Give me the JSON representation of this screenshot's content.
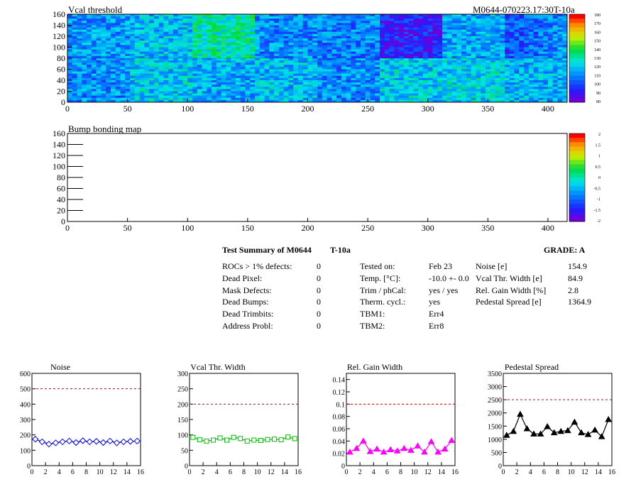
{
  "maps": [
    {
      "id": "vcal",
      "title": "Vcal threshold",
      "right_title": "M0644-070223.17:30T-10a",
      "x_ticks": [
        0,
        50,
        100,
        150,
        200,
        250,
        300,
        350,
        400
      ],
      "y_ticks": [
        0,
        20,
        40,
        60,
        80,
        100,
        120,
        140,
        160
      ],
      "xlim": [
        0,
        416
      ],
      "ylim": [
        0,
        160
      ],
      "colorbar_ticks": [
        "180",
        "170",
        "160",
        "150",
        "140",
        "130",
        "120",
        "110",
        "100",
        "90",
        "80"
      ]
    },
    {
      "id": "bump",
      "title": "Bump bonding map",
      "x_ticks": [
        0,
        50,
        100,
        150,
        200,
        250,
        300,
        350,
        400
      ],
      "y_ticks": [
        0,
        20,
        40,
        60,
        80,
        100,
        120,
        140,
        160
      ],
      "xlim": [
        0,
        416
      ],
      "ylim": [
        0,
        160
      ],
      "colorbar_ticks": [
        "2",
        "1.5",
        "1",
        "0.5",
        "0",
        "-0.5",
        "-1",
        "-1.5",
        "-2"
      ]
    }
  ],
  "summary": {
    "title": "Test Summary of M0644",
    "temp_tag": "T-10a",
    "grade": "GRADE:  A",
    "defects": [
      {
        "label": "ROCs > 1% defects:",
        "value": "0"
      },
      {
        "label": "Dead Pixel:",
        "value": "0"
      },
      {
        "label": "Mask Defects:",
        "value": "0"
      },
      {
        "label": "Dead Bumps:",
        "value": "0"
      },
      {
        "label": "Dead Trimbits:",
        "value": "0"
      },
      {
        "label": "Address Probl:",
        "value": "0"
      }
    ],
    "conditions": [
      {
        "label": "Tested on:",
        "value": "Feb 23"
      },
      {
        "label": "Temp. [°C]:",
        "value": "-10.0 +- 0.0"
      },
      {
        "label": "Trim / phCal:",
        "value": "yes / yes"
      },
      {
        "label": "Therm. cycl.:",
        "value": "yes"
      },
      {
        "label": "TBM1:",
        "value": "Err4"
      },
      {
        "label": "TBM2:",
        "value": "Err8"
      }
    ],
    "results": [
      {
        "label": "Noise [e]",
        "value": "154.9"
      },
      {
        "label": "Vcal Thr. Width [e]",
        "value": "84.9"
      },
      {
        "label": "Rel. Gain Width [%]",
        "value": "2.8"
      },
      {
        "label": "Pedestal Spread [e]",
        "value": "1364.9"
      }
    ]
  },
  "chart_data": [
    {
      "type": "line",
      "title": "Noise",
      "color": "#0000ff",
      "marker": "diamond",
      "x": [
        0,
        1,
        2,
        3,
        4,
        5,
        6,
        7,
        8,
        9,
        10,
        11,
        12,
        13,
        14,
        15
      ],
      "values": [
        172,
        155,
        140,
        148,
        155,
        160,
        150,
        162,
        155,
        158,
        150,
        160,
        148,
        155,
        158,
        160
      ],
      "ylim": [
        0,
        600
      ],
      "y_ticks": [
        0,
        100,
        200,
        300,
        400,
        500,
        600
      ],
      "x_ticks": [
        0,
        2,
        4,
        6,
        8,
        10,
        12,
        14,
        16
      ],
      "xlim": [
        0,
        16
      ],
      "limit": 500
    },
    {
      "type": "line",
      "title": "Vcal Thr. Width",
      "color": "#00bb00",
      "marker": "square",
      "x": [
        0,
        1,
        2,
        3,
        4,
        5,
        6,
        7,
        8,
        9,
        10,
        11,
        12,
        13,
        14,
        15
      ],
      "values": [
        92,
        84,
        80,
        83,
        90,
        83,
        92,
        88,
        80,
        83,
        82,
        85,
        86,
        84,
        93,
        88
      ],
      "ylim": [
        0,
        300
      ],
      "y_ticks": [
        0,
        50,
        100,
        150,
        200,
        250,
        300
      ],
      "x_ticks": [
        0,
        2,
        4,
        6,
        8,
        10,
        12,
        14,
        16
      ],
      "xlim": [
        0,
        16
      ],
      "limit": 200
    },
    {
      "type": "line",
      "title": "Rel. Gain Width",
      "color": "#ff00ff",
      "marker": "triangle",
      "x": [
        0,
        1,
        2,
        3,
        4,
        5,
        6,
        7,
        8,
        9,
        10,
        11,
        12,
        13,
        14,
        15
      ],
      "values": [
        0.022,
        0.028,
        0.04,
        0.023,
        0.027,
        0.022,
        0.026,
        0.024,
        0.028,
        0.025,
        0.032,
        0.022,
        0.039,
        0.022,
        0.027,
        0.041
      ],
      "ylim": [
        0,
        0.15
      ],
      "y_ticks": [
        0,
        0.02,
        0.04,
        0.06,
        0.08,
        0.1,
        0.12,
        0.14
      ],
      "x_ticks": [
        0,
        2,
        4,
        6,
        8,
        10,
        12,
        14,
        16
      ],
      "xlim": [
        0,
        16
      ],
      "limit": 0.1
    },
    {
      "type": "line",
      "title": "Pedestal Spread",
      "color": "#000000",
      "marker": "triangle",
      "x": [
        0,
        1,
        2,
        3,
        4,
        5,
        6,
        7,
        8,
        9,
        10,
        11,
        12,
        13,
        14,
        15
      ],
      "values": [
        1150,
        1300,
        1950,
        1400,
        1200,
        1200,
        1480,
        1250,
        1300,
        1330,
        1650,
        1250,
        1180,
        1350,
        1100,
        1750
      ],
      "ylim": [
        0,
        3500
      ],
      "y_ticks": [
        0,
        500,
        1000,
        1500,
        2000,
        2500,
        3000,
        3500
      ],
      "x_ticks": [
        0,
        2,
        4,
        6,
        8,
        10,
        12,
        14,
        16
      ],
      "xlim": [
        0,
        16
      ],
      "limit": 2500
    }
  ]
}
